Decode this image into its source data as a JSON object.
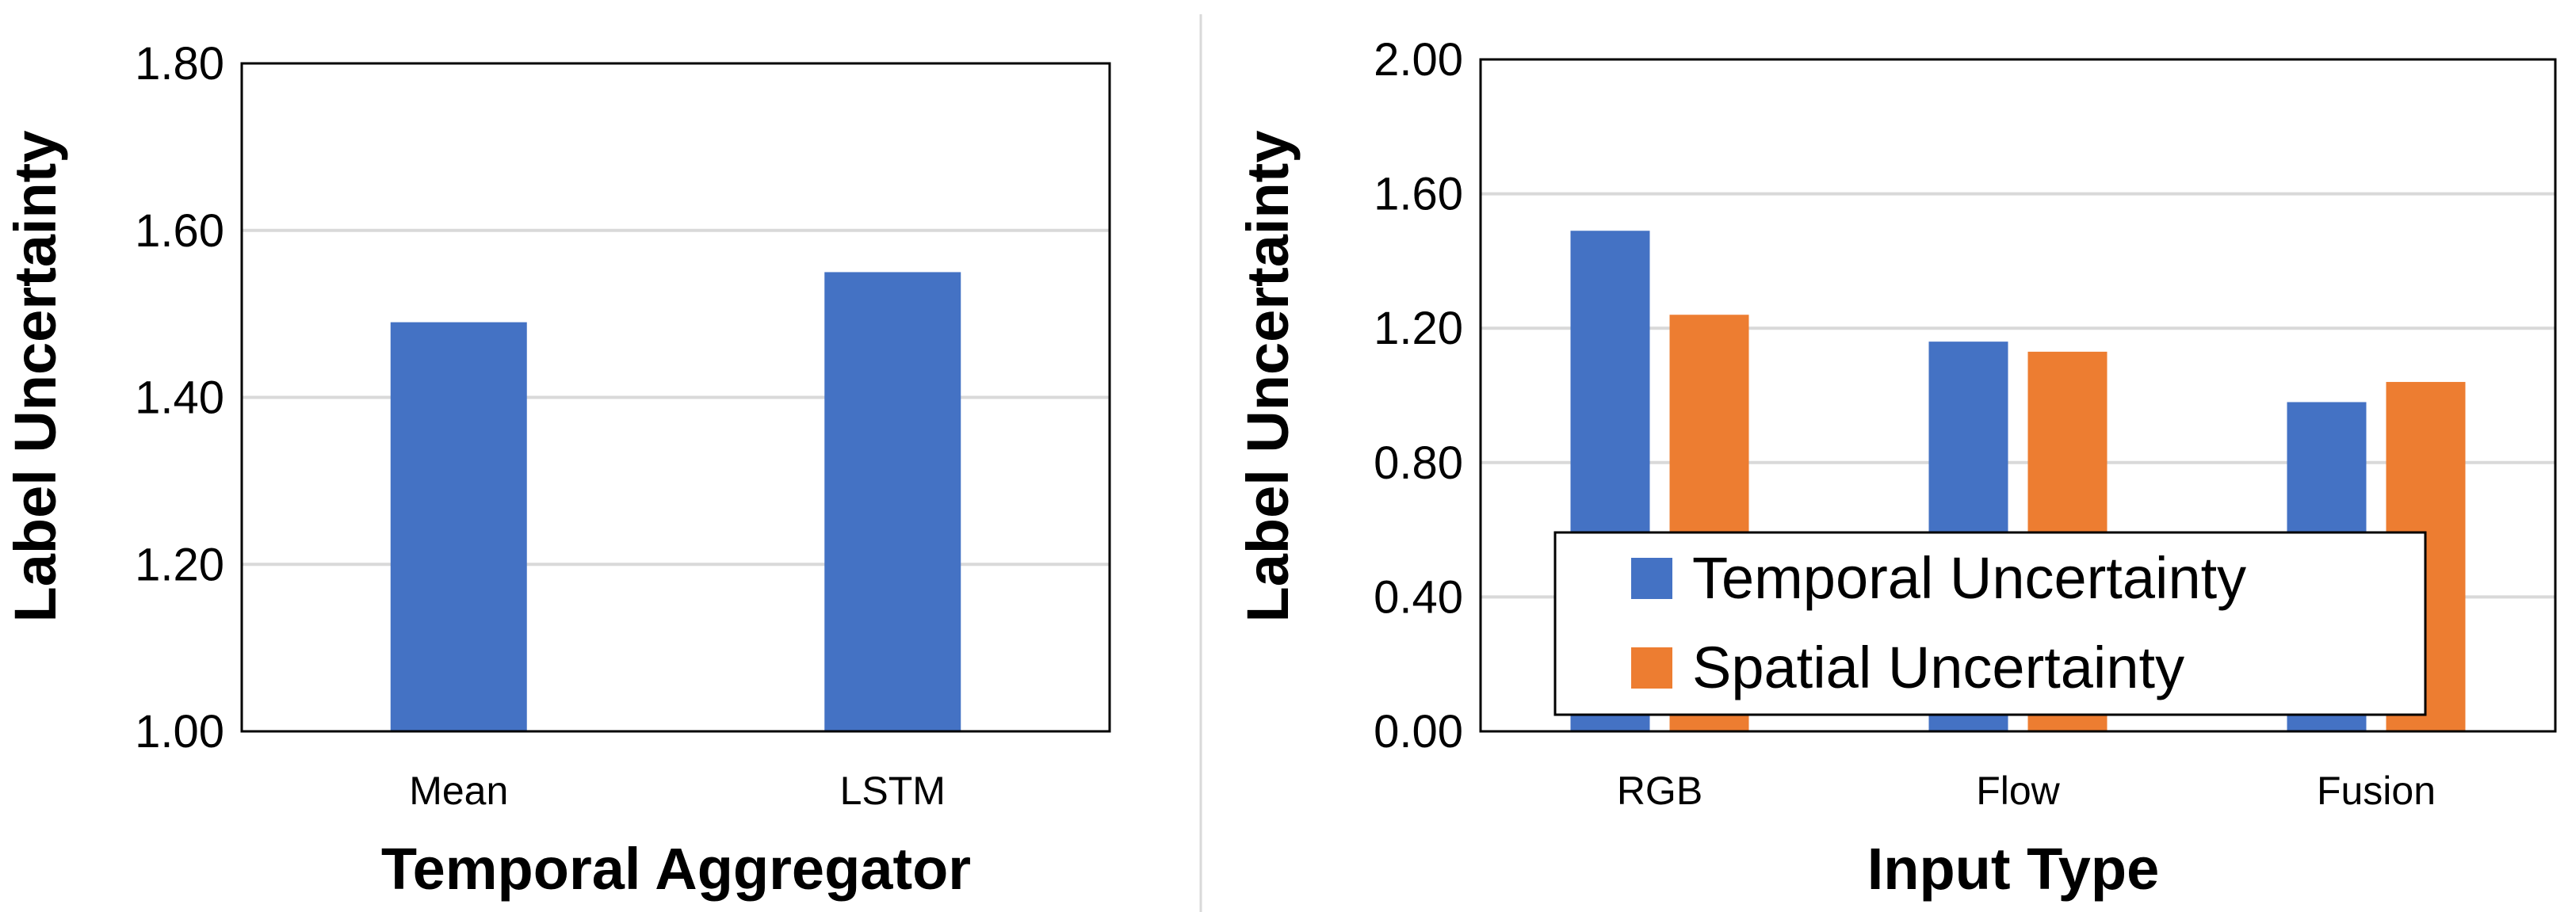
{
  "chart_data": [
    {
      "type": "bar",
      "title": "",
      "xlabel": "Temporal Aggregator",
      "ylabel": "Label Uncertainty",
      "ylim": [
        1.0,
        1.8
      ],
      "yticks": [
        "1.00",
        "1.20",
        "1.40",
        "1.60",
        "1.80"
      ],
      "ytick_values": [
        1.0,
        1.2,
        1.4,
        1.6,
        1.8
      ],
      "categories": [
        "Mean",
        "LSTM"
      ],
      "series": [
        {
          "name": "Label Uncertainty",
          "color": "#4472C4",
          "values": [
            1.49,
            1.55
          ]
        }
      ],
      "grid": true,
      "legend": null
    },
    {
      "type": "bar",
      "title": "",
      "xlabel": "Input Type",
      "ylabel": "Label Uncertainty",
      "ylim": [
        0.0,
        2.0
      ],
      "yticks": [
        "0.00",
        "0.40",
        "0.80",
        "1.20",
        "1.60",
        "2.00"
      ],
      "ytick_values": [
        0.0,
        0.4,
        0.8,
        1.2,
        1.6,
        2.0
      ],
      "categories": [
        "RGB",
        "Flow",
        "Fusion"
      ],
      "series": [
        {
          "name": "Temporal Uncertainty",
          "color": "#4472C4",
          "values": [
            1.49,
            1.16,
            0.98
          ]
        },
        {
          "name": "Spatial Uncertainty",
          "color": "#ED7D31",
          "values": [
            1.24,
            1.13,
            1.04
          ]
        }
      ],
      "grid": true,
      "legend": "bottom-left"
    }
  ]
}
